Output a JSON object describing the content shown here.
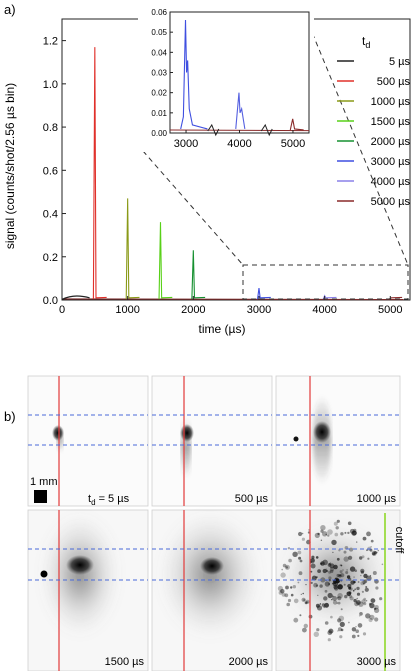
{
  "panel_a_label": "a)",
  "panel_b_label": "b)",
  "chart_data": [
    {
      "type": "line",
      "xlabel": "time (µs)",
      "ylabel": "signal (counts/shot/2.56 µs bin)",
      "xlim": [
        0,
        5300
      ],
      "ylim": [
        0,
        1.3
      ],
      "xticks": [
        0,
        1000,
        2000,
        3000,
        4000,
        5000
      ],
      "yticks": [
        0.0,
        0.2,
        0.4,
        0.6,
        0.8,
        1.0,
        1.2
      ],
      "legend_title": "t",
      "legend_title_sub": "d",
      "legend_position": "right",
      "series": [
        {
          "name": "5 µs",
          "color": "#222222",
          "peak_x": 5,
          "peak_y": 0.0
        },
        {
          "name": "500 µs",
          "color": "#e0302a",
          "peak_x": 500,
          "peak_y": 1.17
        },
        {
          "name": "1000 µs",
          "color": "#8a9a18",
          "peak_x": 1000,
          "peak_y": 0.47
        },
        {
          "name": "1500 µs",
          "color": "#58d018",
          "peak_x": 1500,
          "peak_y": 0.36
        },
        {
          "name": "2000 µs",
          "color": "#169030",
          "peak_x": 2000,
          "peak_y": 0.23
        },
        {
          "name": "3000 µs",
          "color": "#3f4fe0",
          "peak_x": 3000,
          "peak_y": 0.055
        },
        {
          "name": "4000 µs",
          "color": "#8a80e8",
          "peak_x": 4000,
          "peak_y": 0.02
        },
        {
          "name": "5000 µs",
          "color": "#8a2a2a",
          "peak_x": 5000,
          "peak_y": 0.007
        }
      ]
    },
    {
      "type": "line",
      "inset": true,
      "xlim": [
        2700,
        5300
      ],
      "ylim": [
        0,
        0.06
      ],
      "xticks": [
        3000,
        4000,
        5000
      ],
      "yticks": [
        0.0,
        0.01,
        0.02,
        0.03,
        0.04,
        0.05,
        0.06
      ],
      "ytick_labels": [
        "0.00",
        "0.01",
        "0.02",
        "0.03",
        "0.04",
        "0.05",
        "0.06"
      ]
    }
  ],
  "images": {
    "td_prefix": "t",
    "td_sub": "d",
    "td_suffix": " = 5 µs",
    "scale_label": "1 mm",
    "cutoff_label": "cutoff",
    "labels": [
      "500 µs",
      "1000 µs",
      "1500 µs",
      "2000 µs",
      "3000 µs"
    ],
    "colors": {
      "red_line": "#e23a3a",
      "blue_dash": "#4a6ad8",
      "cutoff_line": "#8fd82a"
    }
  }
}
